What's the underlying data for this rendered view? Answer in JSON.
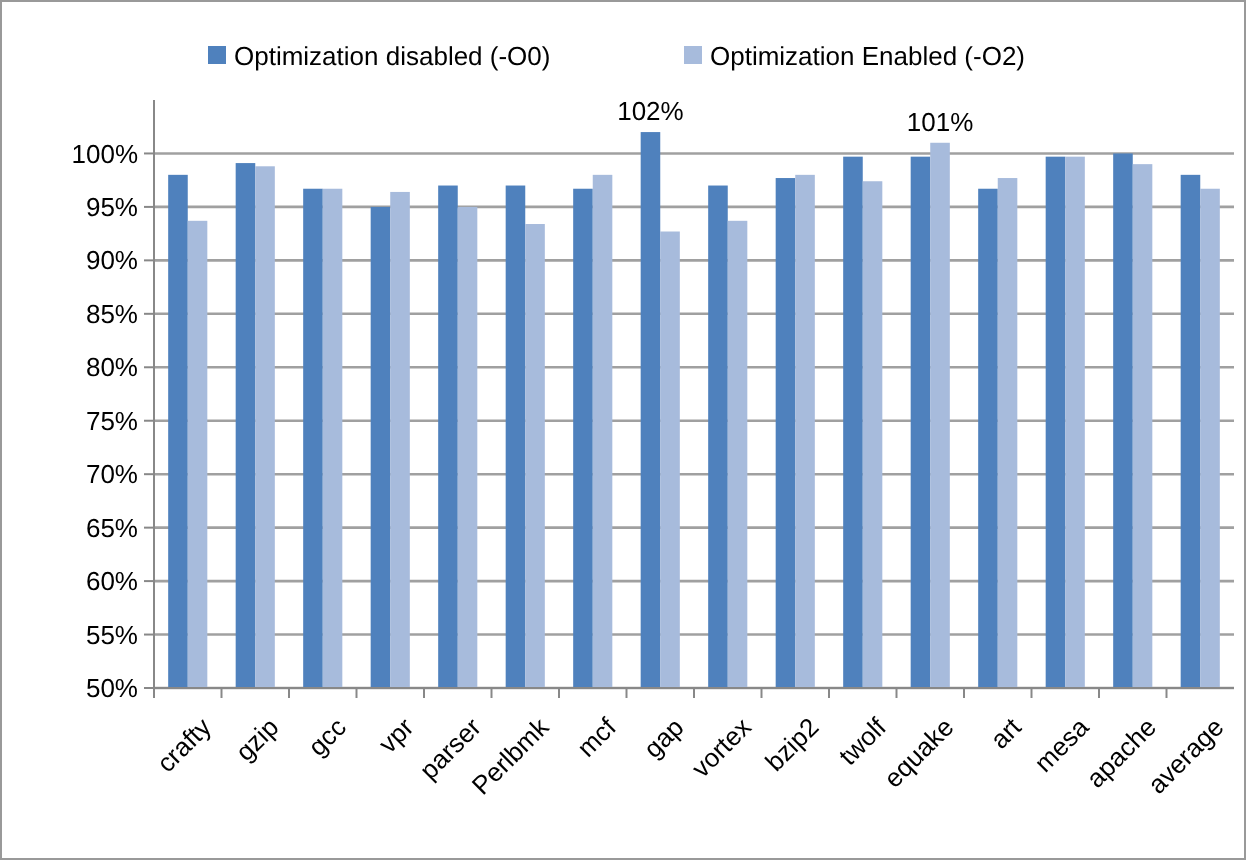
{
  "chart_data": {
    "type": "bar",
    "categories": [
      "crafty",
      "gzip",
      "gcc",
      "vpr",
      "parser",
      "Perlbmk",
      "mcf",
      "gap",
      "vortex",
      "bzip2",
      "twolf",
      "equake",
      "art",
      "mesa",
      "apache",
      "average"
    ],
    "series": [
      {
        "name": "Optimization disabled (-O0)",
        "color": "#4f81bd",
        "values": [
          98.0,
          99.1,
          96.7,
          95.0,
          97.0,
          97.0,
          96.7,
          102,
          97.0,
          97.7,
          99.7,
          99.7,
          96.7,
          99.7,
          100,
          98.0
        ],
        "value_labels": [
          null,
          null,
          null,
          null,
          null,
          null,
          null,
          "102%",
          null,
          null,
          null,
          null,
          null,
          null,
          null,
          null
        ]
      },
      {
        "name": "Optimization Enabled (-O2)",
        "color": "#a7bbdc",
        "values": [
          93.7,
          98.8,
          96.7,
          96.4,
          95.0,
          93.4,
          98.0,
          92.7,
          93.7,
          98.0,
          97.4,
          101,
          97.7,
          99.7,
          99.0,
          96.7
        ],
        "value_labels": [
          null,
          null,
          null,
          null,
          null,
          null,
          null,
          null,
          null,
          null,
          null,
          "101%",
          null,
          null,
          null,
          null
        ]
      }
    ],
    "ylim": [
      50,
      105
    ],
    "yticks": [
      {
        "value": 50,
        "label": "50%"
      },
      {
        "value": 55,
        "label": "55%"
      },
      {
        "value": 60,
        "label": "60%"
      },
      {
        "value": 65,
        "label": "65%"
      },
      {
        "value": 70,
        "label": "70%"
      },
      {
        "value": 75,
        "label": "75%"
      },
      {
        "value": 80,
        "label": "80%"
      },
      {
        "value": 85,
        "label": "85%"
      },
      {
        "value": 90,
        "label": "90%"
      },
      {
        "value": 95,
        "label": "95%"
      },
      {
        "value": 100,
        "label": "100%"
      }
    ],
    "grid": "y",
    "legend": "top"
  }
}
